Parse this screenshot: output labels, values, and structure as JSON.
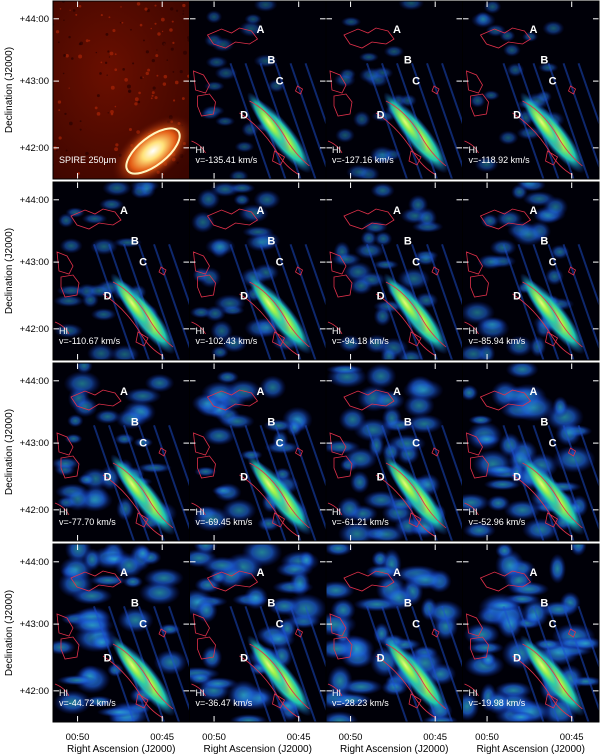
{
  "figure": {
    "y_axis_label": "Declination (J2000)",
    "x_axis_label": "Right Ascension (J2000)",
    "y_ticks": [
      "+44:00",
      "+43:00",
      "+42:00"
    ],
    "x_ticks": [
      "00:50",
      "00:45"
    ],
    "region_letters": [
      "A",
      "B",
      "C",
      "D"
    ]
  },
  "panels": [
    {
      "row": 0,
      "col": 0,
      "kind": "spire",
      "line1": "SPIRE 250μm",
      "line2": ""
    },
    {
      "row": 0,
      "col": 1,
      "kind": "hi",
      "line1": "HI",
      "line2": "v=-135.41 km/s",
      "level": 0.22
    },
    {
      "row": 0,
      "col": 2,
      "kind": "hi",
      "line1": "HI",
      "line2": "v=-127.16 km/s",
      "level": 0.26
    },
    {
      "row": 0,
      "col": 3,
      "kind": "hi",
      "line1": "HI",
      "line2": "v=-118.92 km/s",
      "level": 0.3
    },
    {
      "row": 1,
      "col": 0,
      "kind": "hi",
      "line1": "HI",
      "line2": "v=-110.67 km/s",
      "level": 0.38
    },
    {
      "row": 1,
      "col": 1,
      "kind": "hi",
      "line1": "HI",
      "line2": "v=-102.43 km/s",
      "level": 0.42
    },
    {
      "row": 1,
      "col": 2,
      "kind": "hi",
      "line1": "HI",
      "line2": "v=-94.18 km/s",
      "level": 0.45
    },
    {
      "row": 1,
      "col": 3,
      "kind": "hi",
      "line1": "HI",
      "line2": "v=-85.94 km/s",
      "level": 0.48
    },
    {
      "row": 2,
      "col": 0,
      "kind": "hi",
      "line1": "HI",
      "line2": "v=-77.70 km/s",
      "level": 0.55
    },
    {
      "row": 2,
      "col": 1,
      "kind": "hi",
      "line1": "HI",
      "line2": "v=-69.45 km/s",
      "level": 0.58
    },
    {
      "row": 2,
      "col": 2,
      "kind": "hi",
      "line1": "HI",
      "line2": "v=-61.21 km/s",
      "level": 0.62
    },
    {
      "row": 2,
      "col": 3,
      "kind": "hi",
      "line1": "HI",
      "line2": "v=-52.96 km/s",
      "level": 0.7
    },
    {
      "row": 3,
      "col": 0,
      "kind": "hi",
      "line1": "HI",
      "line2": "v=-44.72 km/s",
      "level": 0.72
    },
    {
      "row": 3,
      "col": 1,
      "kind": "hi",
      "line1": "HI",
      "line2": "v=-36.47 km/s",
      "level": 0.74
    },
    {
      "row": 3,
      "col": 2,
      "kind": "hi",
      "line1": "HI",
      "line2": "v=-28.23 km/s",
      "level": 0.78
    },
    {
      "row": 3,
      "col": 3,
      "kind": "hi",
      "line1": "HI",
      "line2": "v=-19.98 km/s",
      "level": 0.8
    }
  ]
}
